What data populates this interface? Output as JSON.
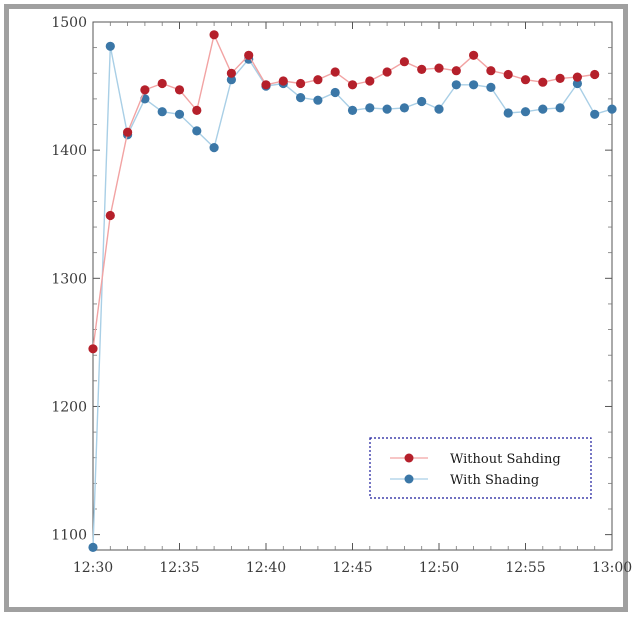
{
  "colors": {
    "frame": "#a0a0a0",
    "series_without_line": "#f2a3a3",
    "series_without_marker": "#b5202b",
    "series_with_line": "#a9cfe6",
    "series_with_marker": "#3b77a7",
    "legend_border": "#1c1c9c"
  },
  "chart_data": {
    "type": "line",
    "title": "",
    "xlabel": "",
    "ylabel": "",
    "x": [
      "12:30",
      "12:31",
      "12:32",
      "12:33",
      "12:34",
      "12:35",
      "12:36",
      "12:37",
      "12:38",
      "12:39",
      "12:40",
      "12:41",
      "12:42",
      "12:43",
      "12:44",
      "12:45",
      "12:46",
      "12:47",
      "12:48",
      "12:49",
      "12:50",
      "12:51",
      "12:52",
      "12:53",
      "12:54",
      "12:55",
      "12:56",
      "12:57",
      "12:58",
      "12:59",
      "13:00"
    ],
    "xlim": [
      "12:30",
      "13:00"
    ],
    "ylim": [
      1088,
      1500
    ],
    "x_ticks": [
      "12:30",
      "12:35",
      "12:40",
      "12:45",
      "12:50",
      "12:55",
      "13:00"
    ],
    "y_ticks": [
      1100,
      1200,
      1300,
      1400,
      1500
    ],
    "series": [
      {
        "name": "Without Sahding",
        "marker": "circle",
        "values": [
          1245,
          1349,
          1414,
          1447,
          1452,
          1447,
          1431,
          1490,
          1460,
          1474,
          1451,
          1454,
          1452,
          1455,
          1461,
          1451,
          1454,
          1461,
          1469,
          1463,
          1464,
          1462,
          1474,
          1462,
          1459,
          1455,
          1453,
          1456,
          1457,
          1459,
          null
        ]
      },
      {
        "name": "With Shading",
        "marker": "circle",
        "values": [
          1090,
          1481,
          1412,
          1440,
          1430,
          1428,
          1415,
          1402,
          1455,
          1471,
          1450,
          1452,
          1441,
          1439,
          1445,
          1431,
          1433,
          1432,
          1433,
          1438,
          1432,
          1451,
          1451,
          1449,
          1429,
          1430,
          1432,
          1433,
          1452,
          1428,
          1432
        ]
      }
    ],
    "legend": {
      "position": "bottom-right",
      "items": [
        "Without Sahding",
        "With Shading"
      ]
    },
    "grid": false
  }
}
